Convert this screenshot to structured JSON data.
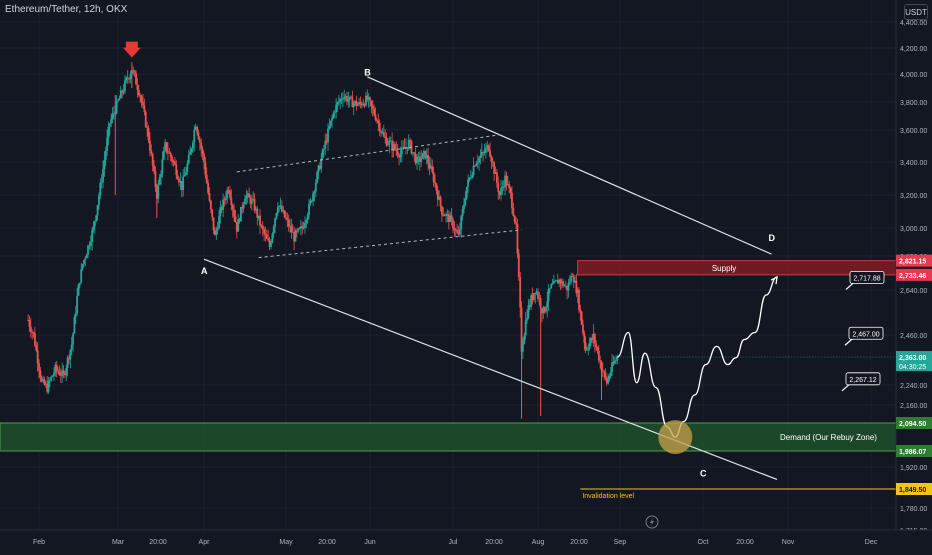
{
  "symbol": "Ethereum/Tether, 12h, OKX",
  "currency": "USDT",
  "colors": {
    "background": "#131722",
    "grid": "#1e222d",
    "up": "#26a69a",
    "down": "#ef5350",
    "line": "#d1d4dc",
    "supply_fill": "#7a1c24",
    "demand_fill": "#1f4d2a",
    "accent_yellow": "#f0c419",
    "circle": "#c8a24a"
  },
  "chart_data": {
    "type": "candlestick",
    "ylim": [
      1715,
      4500
    ],
    "y_ticks": [
      {
        "value": 4400,
        "label": "4,400.00"
      },
      {
        "value": 4200,
        "label": "4,200.00"
      },
      {
        "value": 4000,
        "label": "4,000.00"
      },
      {
        "value": 3800,
        "label": "3,800.00"
      },
      {
        "value": 3600,
        "label": "3,600.00"
      },
      {
        "value": 3400,
        "label": "3,400.00"
      },
      {
        "value": 3200,
        "label": "3,200.00"
      },
      {
        "value": 3000,
        "label": "3,000.00"
      },
      {
        "value": 2850,
        "label": "2,850.00"
      },
      {
        "value": 2640,
        "label": "2,640.00"
      },
      {
        "value": 2460,
        "label": "2,460.00"
      },
      {
        "value": 2240,
        "label": "2,240.00"
      },
      {
        "value": 2160,
        "label": "2,160.00"
      },
      {
        "value": 1920,
        "label": "1,920.00"
      },
      {
        "value": 1780,
        "label": "1,780.00"
      },
      {
        "value": 1715,
        "label": "1,715.00"
      }
    ],
    "x_ticks": [
      "Feb",
      "Mar",
      "20:00",
      "Apr",
      "May",
      "20:00",
      "Jun",
      "Jul",
      "20:00",
      "Aug",
      "20:00",
      "Sep",
      "Oct",
      "20:00",
      "Nov",
      "Dec"
    ],
    "anchors": [
      {
        "label": "Feb",
        "day": 0
      },
      {
        "label": "Mar",
        "day": 29
      },
      {
        "label": "Apr",
        "day": 60
      },
      {
        "label": "May",
        "day": 90
      },
      {
        "label": "Jun",
        "day": 121
      },
      {
        "label": "Jul",
        "day": 151
      },
      {
        "label": "Aug",
        "day": 182
      },
      {
        "label": "Sep",
        "day": 213
      },
      {
        "label": "Oct",
        "day": 243
      },
      {
        "label": "Nov",
        "day": 274
      },
      {
        "label": "Dec",
        "day": 304
      }
    ],
    "price_path": [
      {
        "day": -4,
        "price": 2520
      },
      {
        "day": -2,
        "price": 2460
      },
      {
        "day": 1,
        "price": 2250
      },
      {
        "day": 3,
        "price": 2230
      },
      {
        "day": 6,
        "price": 2310
      },
      {
        "day": 9,
        "price": 2280
      },
      {
        "day": 12,
        "price": 2420
      },
      {
        "day": 16,
        "price": 2800
      },
      {
        "day": 20,
        "price": 3000
      },
      {
        "day": 23,
        "price": 3300
      },
      {
        "day": 26,
        "price": 3650
      },
      {
        "day": 29,
        "price": 3800
      },
      {
        "day": 32,
        "price": 3950
      },
      {
        "day": 34,
        "price": 4040
      },
      {
        "day": 37,
        "price": 3850
      },
      {
        "day": 40,
        "price": 3550
      },
      {
        "day": 43,
        "price": 3200
      },
      {
        "day": 46,
        "price": 3500
      },
      {
        "day": 49,
        "price": 3400
      },
      {
        "day": 52,
        "price": 3250
      },
      {
        "day": 55,
        "price": 3450
      },
      {
        "day": 57,
        "price": 3650
      },
      {
        "day": 60,
        "price": 3400
      },
      {
        "day": 62,
        "price": 3150
      },
      {
        "day": 64,
        "price": 2950
      },
      {
        "day": 66,
        "price": 3100
      },
      {
        "day": 69,
        "price": 3250
      },
      {
        "day": 72,
        "price": 3000
      },
      {
        "day": 75,
        "price": 3200
      },
      {
        "day": 78,
        "price": 3150
      },
      {
        "day": 81,
        "price": 3000
      },
      {
        "day": 84,
        "price": 2900
      },
      {
        "day": 87,
        "price": 3150
      },
      {
        "day": 90,
        "price": 3050
      },
      {
        "day": 93,
        "price": 2950
      },
      {
        "day": 96,
        "price": 3000
      },
      {
        "day": 99,
        "price": 3150
      },
      {
        "day": 102,
        "price": 3350
      },
      {
        "day": 105,
        "price": 3550
      },
      {
        "day": 108,
        "price": 3750
      },
      {
        "day": 111,
        "price": 3850
      },
      {
        "day": 114,
        "price": 3800
      },
      {
        "day": 117,
        "price": 3780
      },
      {
        "day": 120,
        "price": 3820
      },
      {
        "day": 123,
        "price": 3700
      },
      {
        "day": 126,
        "price": 3550
      },
      {
        "day": 129,
        "price": 3500
      },
      {
        "day": 132,
        "price": 3450
      },
      {
        "day": 135,
        "price": 3520
      },
      {
        "day": 138,
        "price": 3400
      },
      {
        "day": 141,
        "price": 3450
      },
      {
        "day": 144,
        "price": 3300
      },
      {
        "day": 147,
        "price": 3100
      },
      {
        "day": 150,
        "price": 3050
      },
      {
        "day": 153,
        "price": 2950
      },
      {
        "day": 156,
        "price": 3250
      },
      {
        "day": 159,
        "price": 3400
      },
      {
        "day": 162,
        "price": 3450
      },
      {
        "day": 164,
        "price": 3500
      },
      {
        "day": 166,
        "price": 3350
      },
      {
        "day": 168,
        "price": 3200
      },
      {
        "day": 170,
        "price": 3300
      },
      {
        "day": 172,
        "price": 3200
      },
      {
        "day": 174,
        "price": 3000
      },
      {
        "day": 175,
        "price": 2700
      },
      {
        "day": 176,
        "price": 2400
      },
      {
        "day": 178,
        "price": 2550
      },
      {
        "day": 181,
        "price": 2650
      },
      {
        "day": 184,
        "price": 2550
      },
      {
        "day": 187,
        "price": 2660
      },
      {
        "day": 190,
        "price": 2700
      },
      {
        "day": 193,
        "price": 2650
      },
      {
        "day": 195,
        "price": 2740
      },
      {
        "day": 197,
        "price": 2620
      },
      {
        "day": 200,
        "price": 2400
      },
      {
        "day": 203,
        "price": 2450
      },
      {
        "day": 206,
        "price": 2320
      },
      {
        "day": 208,
        "price": 2250
      },
      {
        "day": 210,
        "price": 2320
      },
      {
        "day": 212,
        "price": 2363
      }
    ],
    "wicks": [
      {
        "day": 28,
        "high": 3850,
        "low": 3200
      },
      {
        "day": 34,
        "high": 4090,
        "low": 3900
      },
      {
        "day": 43,
        "high": 3250,
        "low": 3060
      },
      {
        "day": 176,
        "high": 2500,
        "low": 2110
      },
      {
        "day": 183,
        "high": 2560,
        "low": 2120
      },
      {
        "day": 206,
        "high": 2330,
        "low": 2180
      }
    ],
    "current_price": 2363
  },
  "levels": {
    "supply": {
      "label": "Supply",
      "top": 2821.15,
      "top_label": "2,821.15",
      "bottom": 2733.46,
      "bottom_label": "2,733.46"
    },
    "demand": {
      "label": "Demand (Our Rebuy Zone)",
      "top": 2094.5,
      "top_label": "2,094.50",
      "bottom": 1986.07,
      "bottom_label": "1,986.07"
    },
    "invalidation": {
      "label": "Invalidation level",
      "price": 1849.5,
      "price_label": "1,849.50"
    },
    "current": {
      "price_label": "2,363.00",
      "timer": "04:30:25"
    }
  },
  "callouts": [
    {
      "text": "2,717.88",
      "price": 2717.88
    },
    {
      "text": "2,467.00",
      "price": 2467.0
    },
    {
      "text": "2,267.12",
      "price": 2267.12
    }
  ],
  "wave_labels": [
    {
      "text": "A",
      "day": 60,
      "price": 2740
    },
    {
      "text": "B",
      "day": 120,
      "price": 3990
    },
    {
      "text": "C",
      "day": 243,
      "price": 1890
    },
    {
      "text": "D",
      "day": 268,
      "price": 2930
    }
  ],
  "trendlines": [
    {
      "name": "channel-upper",
      "from": {
        "day": 120,
        "price": 3980
      },
      "to": {
        "day": 268,
        "price": 2860
      },
      "dashed": false
    },
    {
      "name": "channel-lower",
      "from": {
        "day": 60,
        "price": 2830
      },
      "to": {
        "day": 270,
        "price": 1880
      },
      "dashed": false
    },
    {
      "name": "inner-channel-upper",
      "from": {
        "day": 72,
        "price": 3340
      },
      "to": {
        "day": 168,
        "price": 3570
      },
      "dashed": true
    },
    {
      "name": "inner-channel-lower",
      "from": {
        "day": 80,
        "price": 2840
      },
      "to": {
        "day": 176,
        "price": 2990
      },
      "dashed": true
    }
  ],
  "projection": [
    {
      "day": 212,
      "price": 2363
    },
    {
      "day": 216,
      "price": 2470
    },
    {
      "day": 219,
      "price": 2250
    },
    {
      "day": 222,
      "price": 2380
    },
    {
      "day": 226,
      "price": 2230
    },
    {
      "day": 230,
      "price": 2080
    },
    {
      "day": 233,
      "price": 2040
    },
    {
      "day": 236,
      "price": 2100
    },
    {
      "day": 240,
      "price": 2200
    },
    {
      "day": 244,
      "price": 2330
    },
    {
      "day": 248,
      "price": 2410
    },
    {
      "day": 252,
      "price": 2330
    },
    {
      "day": 255,
      "price": 2360
    },
    {
      "day": 258,
      "price": 2440
    },
    {
      "day": 262,
      "price": 2470
    },
    {
      "day": 266,
      "price": 2620
    },
    {
      "day": 270,
      "price": 2720
    }
  ]
}
